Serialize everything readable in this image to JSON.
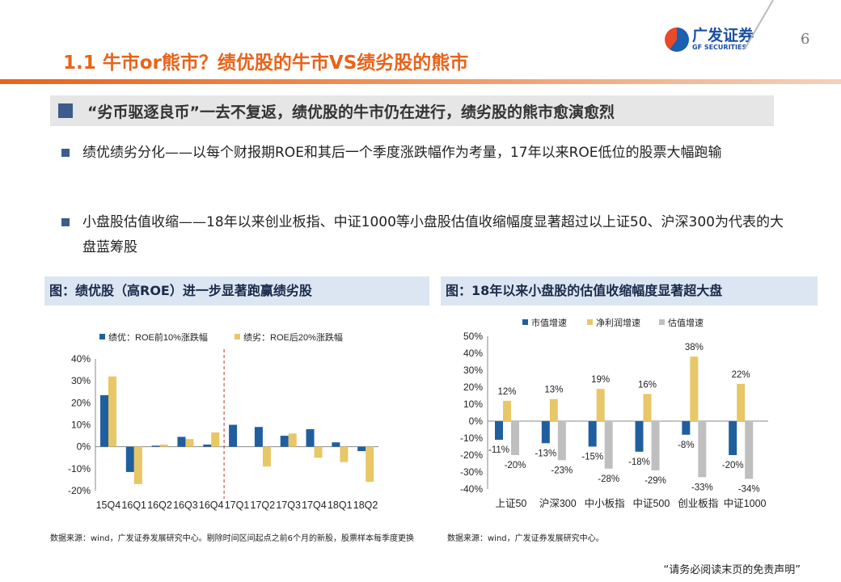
{
  "header": {
    "title": "1.1 牛市or熊市？绩优股的牛市VS绩劣股的熊市",
    "logo_cn": "广发证券",
    "logo_en": "GF SECURITIES",
    "page_number": "6"
  },
  "section": {
    "heading": "“劣币驱逐良币”一去不复返，绩优股的牛市仍在进行，绩劣股的熊市愈演愈烈"
  },
  "bullets": [
    "绩优绩劣分化——以每个财报期ROE和其后一个季度涨跌幅作为考量，17年以来ROE低位的股票大幅跑输",
    "小盘股估值收缩——18年以来创业板指、中证1000等小盘股估值收缩幅度显著超过以上证50、沪深300为代表的大盘蓝筹股"
  ],
  "left_caption": "图：绩优股（高ROE）进一步显著跑赢绩劣股",
  "right_caption": "图：18年以来小盘股的估值收缩幅度显著超大盘",
  "left_source": "数据来源：wind，广发证券发展研究中心。剔除时间区间起点之前6个月的新股，股票样本每季度更换",
  "right_source": "数据来源：wind，广发证券发展研究中心。",
  "disclaimer": "“请务必阅读末页的免责声明”",
  "chart_data": [
    {
      "type": "bar",
      "categories": [
        "15Q4",
        "16Q1",
        "16Q2",
        "16Q3",
        "16Q4",
        "17Q1",
        "17Q2",
        "17Q3",
        "17Q4",
        "18Q1",
        "18Q2"
      ],
      "series": [
        {
          "name": "绩优：ROE前10%涨跌幅",
          "color": "#1f5f9f",
          "values": [
            23.5,
            -11.5,
            0.5,
            4.5,
            1,
            10,
            9,
            5,
            8,
            2,
            -2
          ]
        },
        {
          "name": "绩劣：ROE后20%涨跌幅",
          "color": "#e8c766",
          "values": [
            32,
            -17,
            1,
            3.5,
            6.5,
            0,
            -9,
            6,
            -5,
            -7,
            -16
          ]
        }
      ],
      "ylim": [
        -20,
        40
      ],
      "yticks": [
        "-20%",
        "-10%",
        "0%",
        "10%",
        "20%",
        "30%",
        "40%"
      ],
      "legend": "top",
      "divider_after": "16Q4"
    },
    {
      "type": "bar",
      "categories": [
        "上证50",
        "沪深300",
        "中小板指",
        "中证500",
        "创业板指",
        "中证1000"
      ],
      "series": [
        {
          "name": "市值增速",
          "color": "#1f5f9f",
          "values": [
            -11,
            -13,
            -15,
            -18,
            -8,
            -20
          ],
          "labels": [
            "-11%",
            "-13%",
            "-15%",
            "-18%",
            "-8%",
            "-20%"
          ]
        },
        {
          "name": "净利润增速",
          "color": "#e8c766",
          "values": [
            12,
            13,
            19,
            16,
            38,
            22
          ],
          "labels": [
            "12%",
            "13%",
            "19%",
            "16%",
            "38%",
            "22%"
          ]
        },
        {
          "name": "估值增速",
          "color": "#bfbfbf",
          "values": [
            -20,
            -23,
            -28,
            -29,
            -33,
            -34
          ],
          "labels": [
            "-20%",
            "-23%",
            "-28%",
            "-29%",
            "-33%",
            "-34%"
          ]
        }
      ],
      "ylim": [
        -40,
        50
      ],
      "yticks": [
        "-40%",
        "-30%",
        "-20%",
        "-10%",
        "0%",
        "10%",
        "20%",
        "30%",
        "40%",
        "50%"
      ],
      "legend": "top"
    }
  ]
}
